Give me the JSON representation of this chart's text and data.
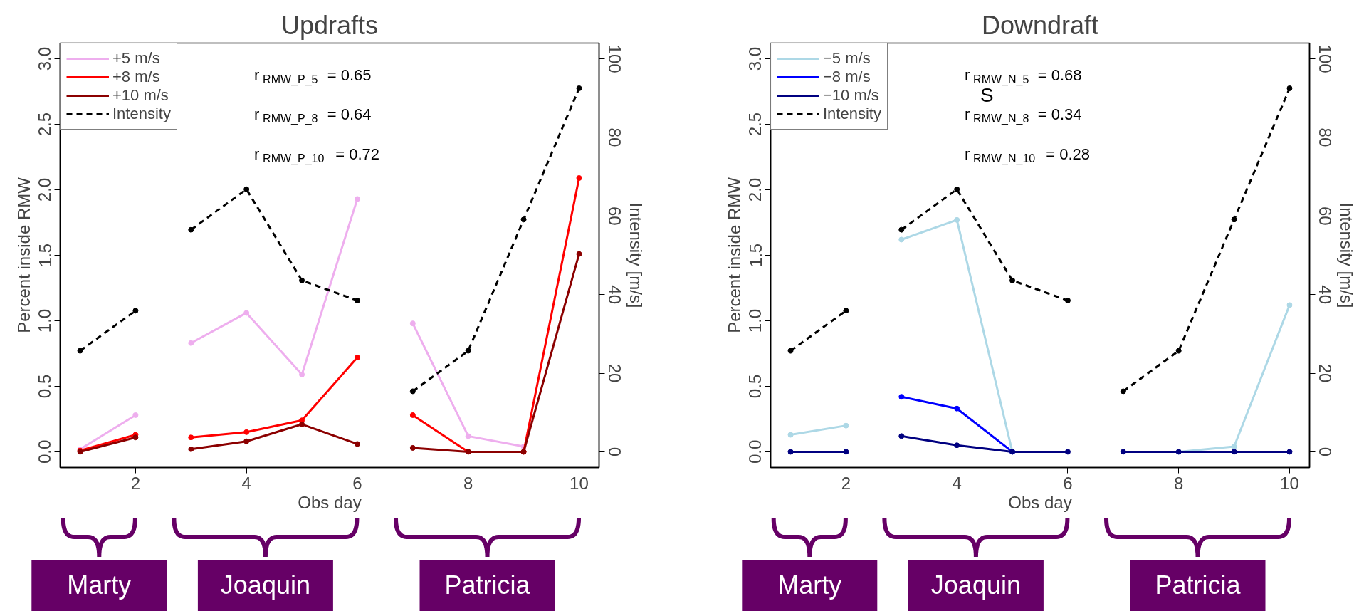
{
  "chart_data": [
    {
      "type": "line",
      "title": "Updrafts",
      "xlabel": "Obs day",
      "ylabel": "Percent inside RMW",
      "y2label": "Intensity [m/s]",
      "x": [
        1,
        2,
        2.5,
        3,
        4,
        5,
        6,
        6.5,
        7,
        8,
        9,
        10
      ],
      "xlim": [
        0.64,
        10.36
      ],
      "xticks": [
        2,
        4,
        6,
        8,
        10
      ],
      "ylim": [
        -0.12,
        3.12
      ],
      "yticks": [
        {
          "value": 0,
          "label": "0.0"
        },
        0.5,
        {
          "value": 1,
          "label": "1.0"
        },
        1.5,
        {
          "value": 2,
          "label": "2.0"
        },
        2.5,
        {
          "value": 3,
          "label": "3.0"
        }
      ],
      "y2lim": [
        -4,
        104
      ],
      "y2ticks": [
        0,
        20,
        40,
        60,
        80,
        100
      ],
      "marker": "circle",
      "legend": "top left",
      "series": [
        {
          "name": "+5 m/s",
          "color": "#eeaeee",
          "values": [
            0.02,
            0.28,
            null,
            0.83,
            1.06,
            0.59,
            1.93,
            null,
            0.98,
            0.12,
            0.04,
            null
          ]
        },
        {
          "name": "+8 m/s",
          "color": "#ff0000",
          "values": [
            0.01,
            0.13,
            null,
            0.11,
            0.15,
            0.24,
            0.72,
            null,
            0.28,
            0.0,
            0.0,
            2.09
          ]
        },
        {
          "name": "+10 m/s",
          "color": "#8b0000",
          "values": [
            0.0,
            0.11,
            null,
            0.02,
            0.08,
            0.21,
            0.06,
            null,
            0.03,
            0.0,
            0.0,
            1.51
          ]
        },
        {
          "name": "Intensity",
          "color": "#000000",
          "axis": "y2",
          "line_style": "dashed",
          "values": [
            25.7,
            35.9,
            null,
            56.5,
            66.8,
            43.6,
            38.5,
            null,
            15.4,
            25.7,
            59.1,
            92.5
          ]
        }
      ],
      "annotations": [
        "r$_{RMW_P_5}$ = 0.65",
        "r$_{RMW_P_8}$ = 0.64",
        "r$_{RMW_P_10}$ = 0.72",
        "Marty",
        "Joaquin",
        "Patricia"
      ]
    },
    {
      "type": "line",
      "title": "Downdraft",
      "xlabel": "Obs day",
      "ylabel": "Percent inside RMW",
      "y2label": "Intensity [m/s]",
      "x": [
        1,
        2,
        2.5,
        3,
        4,
        5,
        6,
        6.5,
        7,
        8,
        9,
        10
      ],
      "xlim": [
        0.64,
        10.36
      ],
      "xticks": [
        2,
        4,
        6,
        8,
        10
      ],
      "ylim": [
        -0.12,
        3.12
      ],
      "yticks": [
        {
          "value": 0,
          "label": "0.0"
        },
        0.5,
        {
          "value": 1,
          "label": "1.0"
        },
        1.5,
        {
          "value": 2,
          "label": "2.0"
        },
        2.5,
        {
          "value": 3,
          "label": "3.0"
        }
      ],
      "y2lim": [
        -4,
        104
      ],
      "y2ticks": [
        0,
        20,
        40,
        60,
        80,
        100
      ],
      "marker": "circle",
      "legend": "top left",
      "series": [
        {
          "name": "−5 m/s",
          "color": "#add8e6",
          "values": [
            0.13,
            0.2,
            null,
            1.62,
            1.77,
            0.0,
            null,
            null,
            null,
            0.0,
            0.04,
            1.12
          ]
        },
        {
          "name": "−8 m/s",
          "color": "#0000ff",
          "values": [
            null,
            null,
            null,
            0.42,
            0.33,
            0.0,
            null,
            null,
            null,
            null,
            null,
            null
          ]
        },
        {
          "name": "−10 m/s",
          "color": "#000080",
          "values": [
            0.0,
            0.0,
            null,
            0.12,
            0.05,
            0.0,
            0.0,
            null,
            0.0,
            0.0,
            0.0,
            0.0
          ]
        },
        {
          "name": "Intensity",
          "color": "#000000",
          "axis": "y2",
          "line_style": "dashed",
          "values": [
            25.7,
            35.9,
            null,
            56.5,
            66.8,
            43.6,
            38.5,
            null,
            15.4,
            25.7,
            59.1,
            92.5
          ]
        }
      ],
      "annotations": [
        "r$_{RMW_N_5}$ = 0.68",
        "r$_{RMW_N_8}$ = 0.34",
        "r$_{RMW_N_10}$ = 0.28",
        "S",
        "Marty",
        "Joaquin",
        "Patricia"
      ]
    }
  ]
}
